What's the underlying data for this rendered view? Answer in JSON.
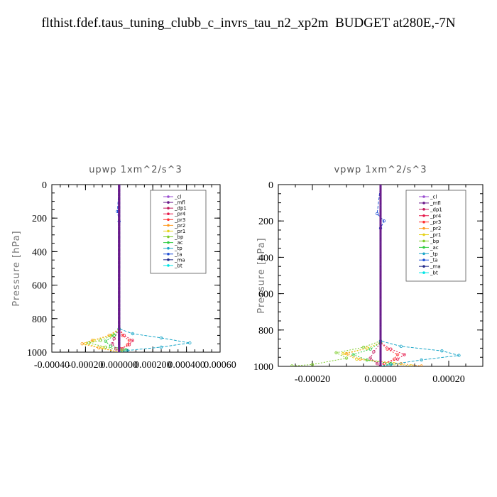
{
  "page": {
    "title": "flthist.fdef.taus_tuning_clubb_c_invrs_tau_n2_xp2m  BUDGET at280E,-7N"
  },
  "legend_entries": [
    {
      "label": "_cl",
      "color": "#9a4dd0"
    },
    {
      "label": "_mfl",
      "color": "#6a1a8a"
    },
    {
      "label": "_dp1",
      "color": "#c2185b"
    },
    {
      "label": "_pr4",
      "color": "#e6194b"
    },
    {
      "label": "_pr3",
      "color": "#ff3030"
    },
    {
      "label": "_pr2",
      "color": "#ff9a1f"
    },
    {
      "label": "_pr1",
      "color": "#e6d21a"
    },
    {
      "label": "_bp",
      "color": "#7ccc2a"
    },
    {
      "label": "_ac",
      "color": "#2ecc40"
    },
    {
      "label": "_tp",
      "color": "#1aa6c8"
    },
    {
      "label": "_ta",
      "color": "#1f4fd6"
    },
    {
      "label": "_ma",
      "color": "#222a8a"
    },
    {
      "label": "_bt",
      "color": "#00e5e5"
    }
  ],
  "chart_data": [
    {
      "type": "line",
      "title": "upwp   1xm^2/s^3",
      "xlabel": "",
      "ylabel": "Pressure [hPa]",
      "xlim": [
        -0.0004,
        0.0006
      ],
      "ylim": [
        1000,
        0
      ],
      "xticks": [
        -0.0004,
        -0.0002,
        0.0,
        0.0002,
        0.0004,
        0.0006
      ],
      "xtick_labels": [
        "-0.00040",
        "-0.00020",
        "0.000000",
        "0.000200",
        "0.000400",
        "0.00060"
      ],
      "yticks": [
        0,
        200,
        400,
        600,
        800,
        1000
      ],
      "ytick_labels": [
        "0",
        "200",
        "400",
        "600",
        "800",
        "1000"
      ],
      "legend": "top-right",
      "series": [
        {
          "name": "_cl",
          "values": [
            [
              0,
              0
            ],
            [
              0,
              1000
            ]
          ]
        },
        {
          "name": "_mfl",
          "values": [
            [
              0,
              0
            ],
            [
              0,
              1000
            ]
          ]
        },
        {
          "name": "_dp1",
          "values": [
            [
              0,
              0
            ],
            [
              0,
              860
            ],
            [
              -3e-05,
              920
            ],
            [
              -4e-05,
              950
            ],
            [
              -2e-05,
              980
            ],
            [
              0,
              1000
            ]
          ]
        },
        {
          "name": "_pr4",
          "values": [
            [
              0,
              0
            ],
            [
              0,
              860
            ],
            [
              3e-05,
              900
            ],
            [
              8e-05,
              930
            ],
            [
              6e-05,
              955
            ],
            [
              2e-05,
              980
            ],
            [
              0,
              1000
            ]
          ]
        },
        {
          "name": "_pr3",
          "values": [
            [
              0,
              0
            ],
            [
              0,
              860
            ],
            [
              2e-05,
              900
            ],
            [
              6e-05,
              930
            ],
            [
              5e-05,
              955
            ],
            [
              1e-05,
              980
            ],
            [
              0,
              1000
            ]
          ]
        },
        {
          "name": "_pr2",
          "values": [
            [
              0,
              0
            ],
            [
              0,
              860
            ],
            [
              -6e-05,
              900
            ],
            [
              -0.00016,
              930
            ],
            [
              -0.00022,
              950
            ],
            [
              -0.00012,
              975
            ],
            [
              0,
              1000
            ]
          ]
        },
        {
          "name": "_pr1",
          "values": [
            [
              0,
              0
            ],
            [
              0,
              860
            ],
            [
              -5e-05,
              900
            ],
            [
              -0.00015,
              930
            ],
            [
              -0.0002,
              950
            ],
            [
              -0.0001,
              975
            ],
            [
              0,
              1000
            ]
          ]
        },
        {
          "name": "_bp",
          "values": [
            [
              0,
              0
            ],
            [
              0,
              860
            ],
            [
              -4e-05,
              900
            ],
            [
              -0.00011,
              930
            ],
            [
              -0.00018,
              945
            ],
            [
              -8e-05,
              970
            ],
            [
              2e-05,
              990
            ],
            [
              0,
              1000
            ]
          ]
        },
        {
          "name": "_ac",
          "values": [
            [
              0,
              0
            ],
            [
              0,
              860
            ],
            [
              -3e-05,
              900
            ],
            [
              -8e-05,
              935
            ],
            [
              -5e-05,
              965
            ],
            [
              4e-05,
              985
            ],
            [
              0,
              1000
            ]
          ]
        },
        {
          "name": "_tp",
          "values": [
            [
              0,
              0
            ],
            [
              0,
              860
            ],
            [
              8e-05,
              890
            ],
            [
              0.00025,
              915
            ],
            [
              0.00042,
              945
            ],
            [
              0.00025,
              970
            ],
            [
              5e-05,
              990
            ],
            [
              0,
              1000
            ]
          ]
        },
        {
          "name": "_ta",
          "values": [
            [
              0,
              0
            ],
            [
              -1e-05,
              160
            ],
            [
              0,
              220
            ],
            [
              0,
              1000
            ]
          ]
        },
        {
          "name": "_ma",
          "values": [
            [
              0,
              0
            ],
            [
              0,
              1000
            ]
          ]
        },
        {
          "name": "_bt",
          "values": [
            [
              0,
              0
            ],
            [
              0,
              1000
            ]
          ]
        }
      ]
    },
    {
      "type": "line",
      "title": "vpwp   1xm^2/s^3",
      "xlabel": "",
      "ylabel": "Pressure [hPa]",
      "xlim": [
        -0.0003,
        0.0003
      ],
      "ylim": [
        1000,
        0
      ],
      "xticks": [
        -0.0002,
        0.0,
        0.0002
      ],
      "xtick_labels": [
        "-0.00020",
        "0.00000",
        "0.00020"
      ],
      "yticks": [
        0,
        200,
        400,
        600,
        800,
        1000
      ],
      "ytick_labels": [
        "0",
        "200",
        "400",
        "600",
        "800",
        "1000"
      ],
      "legend": "top-right",
      "series": [
        {
          "name": "_cl",
          "values": [
            [
              0,
              0
            ],
            [
              0,
              1000
            ]
          ]
        },
        {
          "name": "_mfl",
          "values": [
            [
              0,
              0
            ],
            [
              0,
              1000
            ]
          ]
        },
        {
          "name": "_dp1",
          "values": [
            [
              0,
              0
            ],
            [
              0,
              870
            ],
            [
              -2e-05,
              920
            ],
            [
              -3e-05,
              955
            ],
            [
              -1e-05,
              985
            ],
            [
              0,
              1000
            ]
          ]
        },
        {
          "name": "_pr4",
          "values": [
            [
              0,
              0
            ],
            [
              0,
              870
            ],
            [
              3e-05,
              905
            ],
            [
              7e-05,
              935
            ],
            [
              5e-05,
              960
            ],
            [
              1e-05,
              985
            ],
            [
              0,
              1000
            ]
          ]
        },
        {
          "name": "_pr3",
          "values": [
            [
              0,
              0
            ],
            [
              0,
              870
            ],
            [
              2e-05,
              905
            ],
            [
              5e-05,
              935
            ],
            [
              4e-05,
              960
            ],
            [
              1e-05,
              985
            ],
            [
              0,
              1000
            ]
          ]
        },
        {
          "name": "_pr2",
          "values": [
            [
              0,
              0
            ],
            [
              0,
              870
            ],
            [
              -4e-05,
              900
            ],
            [
              -0.0001,
              930
            ],
            [
              -6e-05,
              960
            ],
            [
              6e-05,
              985
            ],
            [
              0.00012,
              998
            ]
          ]
        },
        {
          "name": "_pr1",
          "values": [
            [
              0,
              0
            ],
            [
              0,
              870
            ],
            [
              -4e-05,
              900
            ],
            [
              -0.00011,
              930
            ],
            [
              -7e-05,
              960
            ],
            [
              4e-05,
              985
            ],
            [
              9e-05,
              998
            ]
          ]
        },
        {
          "name": "_bp",
          "values": [
            [
              0,
              0
            ],
            [
              0,
              860
            ],
            [
              -5e-05,
              895
            ],
            [
              -0.00013,
              925
            ],
            [
              -0.0001,
              955
            ],
            [
              -0.0002,
              990
            ],
            [
              -0.00026,
              998
            ]
          ]
        },
        {
          "name": "_ac",
          "values": [
            [
              0,
              0
            ],
            [
              0,
              870
            ],
            [
              -3e-05,
              905
            ],
            [
              -8e-05,
              935
            ],
            [
              -4e-05,
              965
            ],
            [
              3e-05,
              985
            ],
            [
              0,
              1000
            ]
          ]
        },
        {
          "name": "_tp",
          "values": [
            [
              0,
              0
            ],
            [
              0,
              860
            ],
            [
              6e-05,
              890
            ],
            [
              0.00018,
              915
            ],
            [
              0.00023,
              940
            ],
            [
              0.00012,
              965
            ],
            [
              3e-05,
              990
            ],
            [
              0,
              1000
            ]
          ]
        },
        {
          "name": "_ta",
          "values": [
            [
              0,
              0
            ],
            [
              -1e-05,
              160
            ],
            [
              1e-05,
              200
            ],
            [
              0,
              240
            ],
            [
              0,
              1000
            ]
          ]
        },
        {
          "name": "_ma",
          "values": [
            [
              0,
              0
            ],
            [
              0,
              1000
            ]
          ]
        },
        {
          "name": "_bt",
          "values": [
            [
              0,
              0
            ],
            [
              0,
              1000
            ]
          ]
        }
      ]
    }
  ]
}
